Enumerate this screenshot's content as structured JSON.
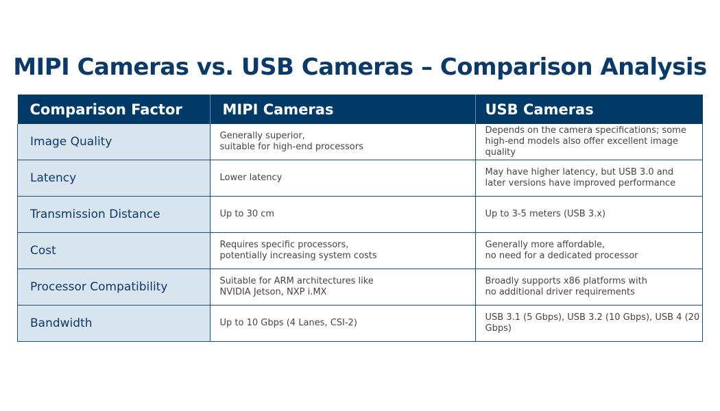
{
  "title": "MIPI Cameras vs. USB Cameras – Comparison Analysis",
  "headers": [
    "Comparison Factor",
    "MIPI Cameras",
    "USB Cameras"
  ],
  "rows": [
    {
      "factor": "Image Quality",
      "mipi": [
        "Generally superior,",
        "suitable for high-end processors"
      ],
      "usb": [
        "Depends on the camera specifications; some",
        "high-end models also offer excellent image quality"
      ]
    },
    {
      "factor": "Latency",
      "mipi": [
        "Lower latency"
      ],
      "usb": [
        "May have higher latency, but USB 3.0 and",
        "later versions have improved performance"
      ]
    },
    {
      "factor": "Transmission Distance",
      "mipi": [
        "Up to 30 cm"
      ],
      "usb": [
        "Up to 3-5 meters (USB 3.x)"
      ]
    },
    {
      "factor": "Cost",
      "mipi": [
        "Requires specific processors,",
        "potentially increasing system costs"
      ],
      "usb": [
        "Generally more affordable,",
        "no need for a dedicated processor"
      ]
    },
    {
      "factor": "Processor Compatibility",
      "mipi": [
        "Suitable for ARM architectures like",
        "NVIDIA Jetson, NXP i.MX"
      ],
      "usb": [
        "Broadly supports x86 platforms with",
        "no additional driver requirements"
      ]
    },
    {
      "factor": "Bandwidth",
      "mipi": [
        "Up to 10 Gbps (4 Lanes, CSI-2)"
      ],
      "usb": [
        "USB 3.1 (5 Gbps), USB 3.2 (10 Gbps), USB 4 (20 Gbps)"
      ]
    }
  ],
  "colors": {
    "header_bg": "#013a67",
    "factor_bg": "#d9e5ee",
    "title": "#0b3a68"
  }
}
